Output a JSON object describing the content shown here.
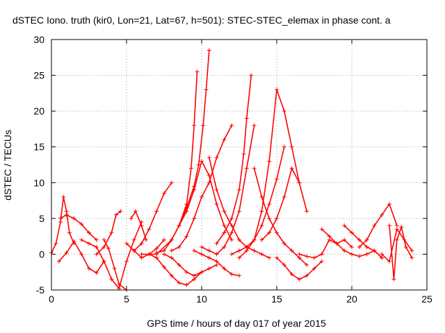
{
  "chart_data": {
    "type": "scatter",
    "title": "dSTEC Iono. truth (kir0, Lon=21, Lat=67, h=501): STEC-STEC_elemax in phase cont. a",
    "xlabel": "GPS time / hours of day 017 of year 2015",
    "ylabel": "dSTEC  / TECUs",
    "xlim": [
      0,
      25
    ],
    "ylim": [
      -5,
      30
    ],
    "xticks": [
      0,
      5,
      10,
      15,
      20,
      25
    ],
    "yticks": [
      -5,
      0,
      5,
      10,
      15,
      20,
      25,
      30
    ],
    "grid": true,
    "marker": "+",
    "color": "#ff0000",
    "series": [
      {
        "x": [
          0.0,
          0.3,
          0.6,
          0.8,
          1.0,
          1.2,
          1.5
        ],
        "y": [
          0.2,
          1.5,
          4.5,
          8.0,
          6.0,
          3.0,
          1.5
        ]
      },
      {
        "x": [
          0.6,
          1.0,
          1.5,
          2.0,
          2.5,
          3.0
        ],
        "y": [
          5.0,
          5.5,
          5.0,
          4.2,
          3.0,
          2.0
        ]
      },
      {
        "x": [
          0.5,
          1.0,
          1.5,
          2.0,
          2.5,
          3.0,
          3.5
        ],
        "y": [
          -1.0,
          0.2,
          1.8,
          0.0,
          -2.0,
          -2.6,
          -1.0
        ]
      },
      {
        "x": [
          2.0,
          2.5,
          3.0,
          3.5,
          4.0,
          4.5,
          5.0,
          5.5,
          6.0
        ],
        "y": [
          2.0,
          1.5,
          1.0,
          -1.0,
          -3.5,
          -4.8,
          -1.0,
          2.0,
          4.5
        ]
      },
      {
        "x": [
          3.5,
          3.8,
          4.2,
          4.5,
          5.0
        ],
        "y": [
          2.0,
          0.8,
          -2.0,
          -4.2,
          -5.0
        ]
      },
      {
        "x": [
          3.0,
          3.5,
          4.0,
          4.3,
          4.6
        ],
        "y": [
          0.0,
          1.0,
          3.0,
          5.5,
          6.0
        ]
      },
      {
        "x": [
          5.0,
          5.5,
          6.0,
          6.5,
          7.0,
          7.5
        ],
        "y": [
          1.5,
          0.5,
          -0.5,
          0.0,
          0.8,
          2.0
        ]
      },
      {
        "x": [
          5.3,
          5.6,
          6.0,
          6.3
        ],
        "y": [
          5.0,
          6.0,
          4.0,
          2.0
        ]
      },
      {
        "x": [
          5.5,
          6.0,
          6.5,
          7.0,
          7.5,
          8.0
        ],
        "y": [
          0.5,
          1.5,
          3.5,
          6.0,
          8.5,
          10.0
        ]
      },
      {
        "x": [
          6.0,
          7.0,
          8.0,
          8.5,
          9.0,
          9.3,
          9.5,
          9.7
        ],
        "y": [
          0.0,
          0.0,
          2.0,
          4.0,
          7.0,
          12.0,
          18.0,
          25.5
        ]
      },
      {
        "x": [
          6.5,
          7.0,
          7.5,
          8.0,
          8.5,
          9.0,
          9.5,
          10.0
        ],
        "y": [
          0.0,
          -0.5,
          -1.8,
          -3.0,
          -4.0,
          -4.3,
          -3.5,
          -2.5
        ]
      },
      {
        "x": [
          7.0,
          7.5,
          8.0,
          8.5,
          9.0,
          9.5,
          9.8,
          10.1,
          10.3,
          10.5
        ],
        "y": [
          0.2,
          0.5,
          2.0,
          4.0,
          6.5,
          9.5,
          12.5,
          18.0,
          23.0,
          28.5
        ]
      },
      {
        "x": [
          7.5,
          8.0,
          8.5,
          9.0,
          9.5,
          10.0,
          10.5,
          11.0
        ],
        "y": [
          0.0,
          -0.5,
          -1.5,
          -2.5,
          -3.0,
          -2.5,
          -2.0,
          -1.5
        ]
      },
      {
        "x": [
          8.5,
          9.0,
          9.5,
          10.0,
          10.5,
          11.0,
          11.5,
          12.0
        ],
        "y": [
          4.0,
          6.0,
          9.0,
          13.0,
          11.0,
          7.0,
          4.0,
          2.0
        ]
      },
      {
        "x": [
          8.0,
          8.5,
          9.0,
          9.5,
          10.0,
          10.5,
          11.0,
          11.5,
          12.0
        ],
        "y": [
          0.5,
          1.0,
          2.5,
          5.0,
          8.0,
          10.0,
          13.5,
          16.0,
          18.0
        ]
      },
      {
        "x": [
          9.5,
          10.0,
          10.5,
          11.0,
          11.5,
          12.0,
          12.5
        ],
        "y": [
          0.5,
          0.0,
          -0.5,
          -1.0,
          -2.0,
          -2.8,
          -3.0
        ]
      },
      {
        "x": [
          10.0,
          10.5,
          11.0,
          11.5,
          12.0,
          12.5,
          13.0,
          13.5
        ],
        "y": [
          1.0,
          0.5,
          0.0,
          1.0,
          3.0,
          6.0,
          12.0,
          18.0
        ]
      },
      {
        "x": [
          10.5,
          11.0,
          11.5,
          12.0,
          12.5,
          13.0,
          13.5,
          14.0,
          14.5
        ],
        "y": [
          13.5,
          9.0,
          6.0,
          4.0,
          2.0,
          1.0,
          0.5,
          0.0,
          -0.5
        ]
      },
      {
        "x": [
          11.0,
          11.5,
          12.0,
          12.5,
          12.8,
          13.0,
          13.3
        ],
        "y": [
          1.5,
          3.0,
          5.0,
          9.0,
          14.0,
          19.0,
          25.0
        ]
      },
      {
        "x": [
          12.0,
          12.5,
          13.0,
          13.5,
          14.0,
          14.5,
          15.0,
          15.5
        ],
        "y": [
          0.0,
          0.5,
          1.0,
          2.0,
          4.0,
          7.0,
          10.5,
          15.0
        ]
      },
      {
        "x": [
          12.5,
          13.0,
          13.5,
          14.0,
          14.5,
          15.0,
          15.5,
          16.0,
          16.5
        ],
        "y": [
          -0.5,
          0.5,
          2.0,
          6.0,
          13.0,
          23.0,
          20.0,
          15.0,
          10.0
        ]
      },
      {
        "x": [
          13.5,
          14.0,
          14.5,
          15.0,
          15.5,
          16.0,
          16.5,
          17.0
        ],
        "y": [
          12.0,
          8.0,
          5.0,
          3.0,
          1.5,
          0.5,
          -0.5,
          -1.5
        ]
      },
      {
        "x": [
          14.0,
          14.5,
          15.0,
          15.5,
          16.0,
          16.5,
          17.0
        ],
        "y": [
          2.0,
          3.0,
          5.0,
          8.0,
          12.0,
          10.0,
          6.0
        ]
      },
      {
        "x": [
          15.0,
          15.5,
          16.0,
          16.5,
          17.0,
          17.5,
          18.0
        ],
        "y": [
          -0.5,
          -1.5,
          -2.8,
          -3.5,
          -3.0,
          -2.0,
          -1.0
        ]
      },
      {
        "x": [
          16.5,
          17.0,
          17.5,
          18.0,
          18.5,
          19.0,
          19.5,
          20.0,
          20.5,
          21.0,
          21.5,
          22.0
        ],
        "y": [
          0.0,
          -0.3,
          -0.5,
          0.0,
          2.0,
          1.5,
          0.5,
          0.0,
          -0.3,
          0.0,
          0.5,
          -0.5
        ]
      },
      {
        "x": [
          18.0,
          18.5,
          19.0,
          19.5,
          20.0
        ],
        "y": [
          3.5,
          2.5,
          1.5,
          2.0,
          1.0
        ]
      },
      {
        "x": [
          19.5,
          20.0,
          20.5,
          21.0,
          21.5,
          22.0
        ],
        "y": [
          4.0,
          3.0,
          2.0,
          1.0,
          0.5,
          -0.5
        ]
      },
      {
        "x": [
          20.5,
          21.0,
          21.5,
          22.0,
          22.5,
          23.0
        ],
        "y": [
          1.0,
          2.0,
          4.0,
          5.5,
          7.0,
          4.0
        ]
      },
      {
        "x": [
          22.0,
          22.5,
          23.0,
          23.5,
          24.0
        ],
        "y": [
          0.0,
          -1.0,
          3.5,
          2.0,
          0.5
        ]
      },
      {
        "x": [
          22.5,
          22.8,
          23.0,
          23.3,
          23.6,
          24.0
        ],
        "y": [
          4.0,
          -3.5,
          2.0,
          3.8,
          1.0,
          -0.5
        ]
      }
    ]
  }
}
